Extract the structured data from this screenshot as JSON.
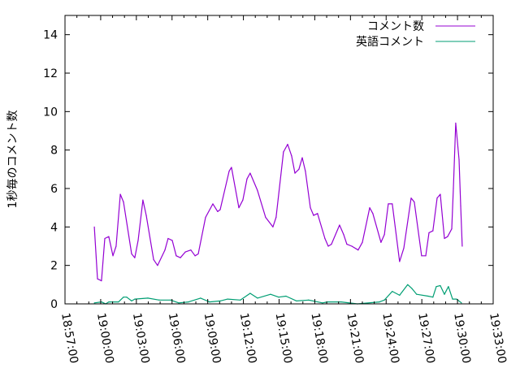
{
  "chart_data": {
    "type": "line",
    "title": "",
    "xlabel": "",
    "ylabel": "1秒毎のコメント数",
    "xlim": [
      "18:57:00",
      "19:33:00"
    ],
    "ylim": [
      0,
      15
    ],
    "xticks": [
      "18:57:00",
      "19:00:00",
      "19:03:00",
      "19:06:00",
      "19:09:00",
      "19:12:00",
      "19:15:00",
      "19:18:00",
      "19:21:00",
      "19:24:00",
      "19:27:00",
      "19:30:00",
      "19:33:00"
    ],
    "yticks": [
      0,
      2,
      4,
      6,
      8,
      10,
      12,
      14
    ],
    "grid": false,
    "legend_position": "top-right",
    "series": [
      {
        "name": "コメント数",
        "color": "#9400d3",
        "x": [
          "18:59:28",
          "18:59:44",
          "19:00:04",
          "19:00:21",
          "19:00:41",
          "19:01:02",
          "19:01:18",
          "19:01:39",
          "19:01:55",
          "19:02:36",
          "19:02:52",
          "19:03:09",
          "19:03:33",
          "19:03:50",
          "19:04:27",
          "19:04:47",
          "19:05:24",
          "19:05:40",
          "19:06:01",
          "19:06:21",
          "19:06:42",
          "19:07:07",
          "19:07:35",
          "19:07:56",
          "19:08:12",
          "19:08:49",
          "19:09:26",
          "19:09:50",
          "19:10:03",
          "19:10:48",
          "19:11:00",
          "19:11:37",
          "19:11:57",
          "19:12:18",
          "19:12:34",
          "19:13:11",
          "19:13:52",
          "19:14:29",
          "19:14:45",
          "19:15:22",
          "19:15:43",
          "19:16:03",
          "19:16:20",
          "19:16:40",
          "19:16:57",
          "19:17:13",
          "19:17:38",
          "19:17:54",
          "19:18:14",
          "19:18:51",
          "19:19:08",
          "19:19:24",
          "19:20:05",
          "19:20:26",
          "19:20:42",
          "19:21:07",
          "19:21:39",
          "19:22:00",
          "19:22:37",
          "19:22:53",
          "19:23:34",
          "19:23:51",
          "19:24:11",
          "19:24:31",
          "19:25:08",
          "19:25:29",
          "19:26:06",
          "19:26:22",
          "19:26:59",
          "19:27:20",
          "19:27:36",
          "19:27:56",
          "19:28:17",
          "19:28:33",
          "19:28:54",
          "19:29:10",
          "19:29:31",
          "19:29:39",
          "19:29:51",
          "19:30:08",
          "19:30:16",
          "19:30:24"
        ],
        "y": [
          4.0,
          1.3,
          1.2,
          3.4,
          3.5,
          2.5,
          3.0,
          5.7,
          5.3,
          2.6,
          2.4,
          3.3,
          5.4,
          4.6,
          2.3,
          2.0,
          2.8,
          3.4,
          3.3,
          2.5,
          2.4,
          2.7,
          2.8,
          2.5,
          2.6,
          4.5,
          5.2,
          4.8,
          4.9,
          6.9,
          7.1,
          5.0,
          5.4,
          6.5,
          6.8,
          5.9,
          4.5,
          4.0,
          4.5,
          7.9,
          8.3,
          7.7,
          6.8,
          7.0,
          7.6,
          6.9,
          5.0,
          4.6,
          4.7,
          3.4,
          3.0,
          3.1,
          4.1,
          3.6,
          3.1,
          3.0,
          2.8,
          3.2,
          5.0,
          4.7,
          3.2,
          3.6,
          5.2,
          5.2,
          2.2,
          2.9,
          5.5,
          5.3,
          2.5,
          2.5,
          3.7,
          3.8,
          5.5,
          5.7,
          3.4,
          3.5,
          3.9,
          6.0,
          9.4,
          7.5,
          5.1,
          3.0
        ]
      },
      {
        "name": "英語コメント",
        "color": "#009e73",
        "x": [
          "18:59:28",
          "19:00:04",
          "19:00:25",
          "19:00:41",
          "19:01:30",
          "19:01:55",
          "19:02:11",
          "19:02:36",
          "19:02:52",
          "19:03:58",
          "19:04:55",
          "19:05:53",
          "19:06:34",
          "19:07:23",
          "19:08:24",
          "19:09:09",
          "19:10:03",
          "19:10:40",
          "19:11:45",
          "19:12:34",
          "19:13:11",
          "19:14:17",
          "19:14:58",
          "19:15:35",
          "19:16:28",
          "19:17:29",
          "19:18:39",
          "19:19:04",
          "19:20:13",
          "19:21:35",
          "19:23:26",
          "19:23:51",
          "19:24:31",
          "19:25:08",
          "19:25:49",
          "19:26:10",
          "19:26:34",
          "19:27:32",
          "19:27:56",
          "19:28:13",
          "19:28:33",
          "19:28:54",
          "19:29:14",
          "19:29:35",
          "19:29:55",
          "19:30:20"
        ],
        "y": [
          0.05,
          0.1,
          0.0,
          0.1,
          0.1,
          0.35,
          0.35,
          0.15,
          0.25,
          0.3,
          0.2,
          0.2,
          0.05,
          0.1,
          0.3,
          0.1,
          0.15,
          0.25,
          0.2,
          0.55,
          0.3,
          0.5,
          0.35,
          0.4,
          0.15,
          0.2,
          0.05,
          0.1,
          0.1,
          0.0,
          0.1,
          0.2,
          0.65,
          0.45,
          1.0,
          0.8,
          0.5,
          0.4,
          0.35,
          0.9,
          0.95,
          0.5,
          0.9,
          0.25,
          0.25,
          0.05
        ]
      }
    ]
  }
}
